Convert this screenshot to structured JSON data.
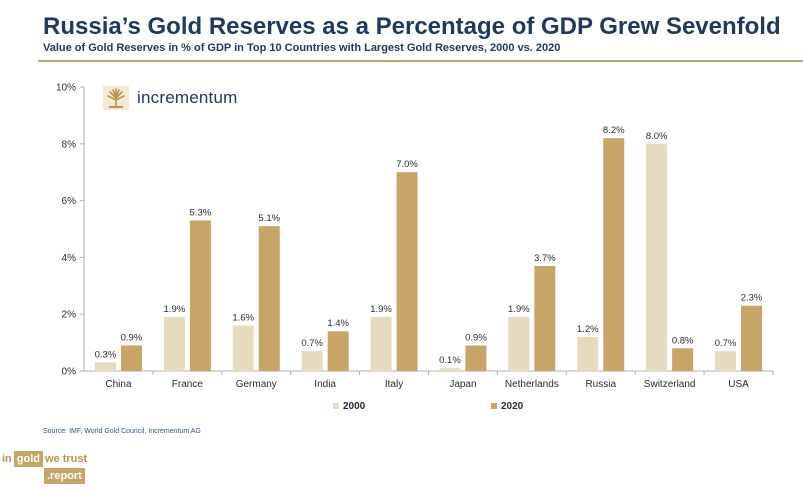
{
  "header": {
    "title": "Russia’s Gold Reserves as a Percentage of GDP Grew Sevenfold",
    "subtitle": "Value of Gold Reserves in % of GDP in Top 10 Countries with Largest Gold Reserves, 2000 vs. 2020"
  },
  "brand": {
    "name": "incrementum",
    "logo_icon": "tree-logo-icon"
  },
  "source": "Source: IMF, World Gold Council, Incrementum AG",
  "footer_logo": {
    "word_in": "in",
    "word_gold": "gold",
    "word_we_trust": "we trust",
    "word_report": ".report"
  },
  "colors": {
    "s2000": "#e6dbbf",
    "s2020": "#c7a568",
    "title": "#22395e",
    "axis": "#b0b0b0"
  },
  "chart_data": {
    "type": "bar",
    "title": "Russia’s Gold Reserves as a Percentage of GDP Grew Sevenfold",
    "categories": [
      "China",
      "France",
      "Germany",
      "India",
      "Italy",
      "Japan",
      "Netherlands",
      "Russia",
      "Switzerland",
      "USA"
    ],
    "series": [
      {
        "name": "2000",
        "values": [
          0.3,
          1.9,
          1.6,
          0.7,
          1.9,
          0.1,
          1.9,
          1.2,
          8.0,
          0.7
        ],
        "labels": [
          "0.3%",
          "1.9%",
          "1.6%",
          "0.7%",
          "1.9%",
          "0.1%",
          "1.9%",
          "1.2%",
          "8.0%",
          "0.7%"
        ]
      },
      {
        "name": "2020",
        "values": [
          0.9,
          5.3,
          5.1,
          1.4,
          7.0,
          0.9,
          3.7,
          8.2,
          0.8,
          2.3
        ],
        "labels": [
          "0.9%",
          "5.3%",
          "5.1%",
          "1.4%",
          "7.0%",
          "0.9%",
          "3.7%",
          "8.2%",
          "0.8%",
          "2.3%"
        ]
      }
    ],
    "yticks": [
      0,
      2,
      4,
      6,
      8,
      10
    ],
    "ytick_labels": [
      "0%",
      "2%",
      "4%",
      "6%",
      "8%",
      "10%"
    ],
    "ylim": [
      0,
      10
    ],
    "xlabel": "",
    "ylabel": "",
    "legend": [
      "2000",
      "2020"
    ],
    "legend_position": "bottom-center",
    "grid": false
  }
}
